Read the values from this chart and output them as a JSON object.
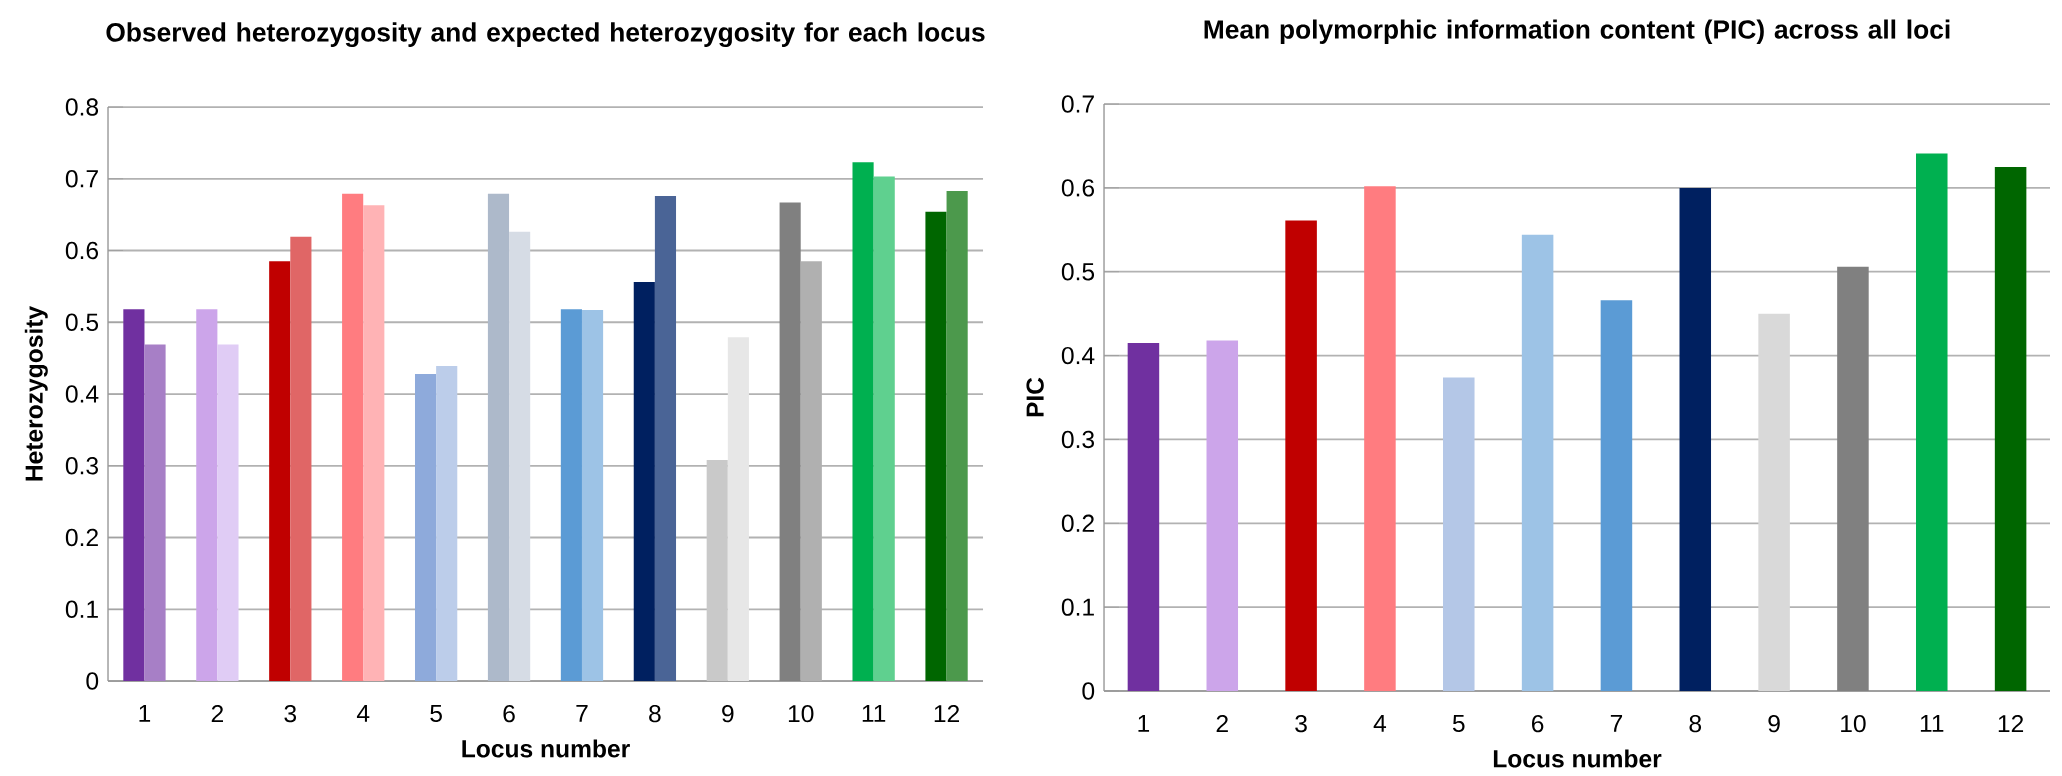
{
  "chart_data": [
    {
      "type": "bar",
      "title": "Observed heterozygosity and expected heterozygosity for each locus",
      "xlabel": "Locus number",
      "ylabel": "Heterozygosity",
      "categories": [
        "1",
        "2",
        "3",
        "4",
        "5",
        "6",
        "7",
        "8",
        "9",
        "10",
        "11",
        "12"
      ],
      "series": [
        {
          "values": [
            0.518,
            0.518,
            0.585,
            0.679,
            0.428,
            0.679,
            0.518,
            0.556,
            0.308,
            0.667,
            0.723,
            0.654
          ],
          "colors": [
            "#7030a0",
            "#cca5ea",
            "#c00000",
            "#ff7c80",
            "#8eaadb",
            "#adb9ca",
            "#5b9bd5",
            "#002060",
            "#c9c9c9",
            "#808080",
            "#00b050",
            "#006600"
          ]
        },
        {
          "values": [
            0.469,
            0.469,
            0.619,
            0.663,
            0.439,
            0.626,
            0.517,
            0.676,
            0.479,
            0.585,
            0.703,
            0.683
          ],
          "colors": [
            "#a77fc6",
            "#e0ccf5",
            "#e06666",
            "#ffb3b5",
            "#bccdea",
            "#d6dce5",
            "#9dc3e6",
            "#4a6496",
            "#e7e7e7",
            "#b0b0b0",
            "#5fd08f",
            "#4c994c"
          ]
        }
      ],
      "ylim": [
        0,
        0.8
      ],
      "yticks": [
        0,
        0.1,
        0.2,
        0.3,
        0.4,
        0.5,
        0.6,
        0.7,
        0.8
      ],
      "grid": "y"
    },
    {
      "type": "bar",
      "title": "Mean polymorphic information content (PIC) across all loci",
      "xlabel": "Locus number",
      "ylabel": "PIC",
      "categories": [
        "1",
        "2",
        "3",
        "4",
        "5",
        "6",
        "7",
        "8",
        "9",
        "10",
        "11",
        "12"
      ],
      "values": [
        0.415,
        0.418,
        0.561,
        0.602,
        0.374,
        0.544,
        0.466,
        0.6,
        0.45,
        0.506,
        0.641,
        0.625
      ],
      "colors": [
        "#7030a0",
        "#cca5ea",
        "#c00000",
        "#ff7c80",
        "#b4c7e7",
        "#9dc3e6",
        "#5b9bd5",
        "#002060",
        "#d9d9d9",
        "#808080",
        "#00b050",
        "#006600"
      ],
      "ylim": [
        0,
        0.7
      ],
      "yticks": [
        0,
        0.1,
        0.2,
        0.3,
        0.4,
        0.5,
        0.6,
        0.7
      ],
      "grid": "y"
    }
  ]
}
